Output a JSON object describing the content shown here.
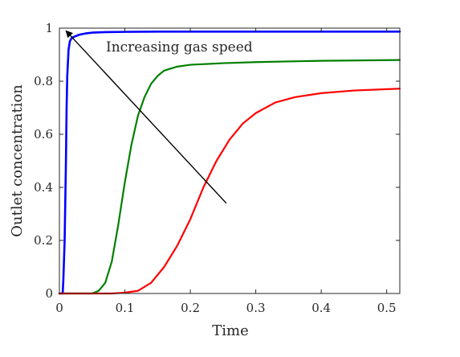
{
  "chart_data": {
    "type": "line",
    "xlabel": "Time",
    "ylabel": "Outlet concentration",
    "xlim": [
      0,
      0.52
    ],
    "ylim": [
      0,
      1
    ],
    "xticks": [
      0,
      0.1,
      0.2,
      0.3,
      0.4,
      0.5
    ],
    "xtick_labels": [
      "0",
      "0.1",
      "0.2",
      "0.3",
      "0.4",
      "0.5"
    ],
    "yticks": [
      0,
      0.2,
      0.4,
      0.6,
      0.8,
      1
    ],
    "ytick_labels": [
      "0",
      "0.2",
      "0.4",
      "0.6",
      "0.8",
      "1"
    ],
    "grid": false,
    "series": [
      {
        "color": "#0000ff",
        "x": [
          0,
          0.005,
          0.006,
          0.008,
          0.01,
          0.011,
          0.012,
          0.014,
          0.016,
          0.018,
          0.02,
          0.025,
          0.03,
          0.04,
          0.05,
          0.07,
          0.1,
          0.15,
          0.2,
          0.3,
          0.4,
          0.52
        ],
        "y": [
          0,
          0,
          0.05,
          0.2,
          0.5,
          0.7,
          0.82,
          0.92,
          0.95,
          0.96,
          0.965,
          0.97,
          0.975,
          0.98,
          0.983,
          0.985,
          0.986,
          0.987,
          0.987,
          0.987,
          0.987,
          0.987
        ]
      },
      {
        "color": "#008000",
        "x": [
          0,
          0.05,
          0.06,
          0.07,
          0.08,
          0.09,
          0.1,
          0.11,
          0.12,
          0.13,
          0.14,
          0.15,
          0.16,
          0.18,
          0.2,
          0.25,
          0.3,
          0.4,
          0.52
        ],
        "y": [
          0,
          0,
          0.01,
          0.04,
          0.12,
          0.26,
          0.42,
          0.56,
          0.67,
          0.74,
          0.79,
          0.82,
          0.84,
          0.855,
          0.862,
          0.868,
          0.872,
          0.877,
          0.88
        ]
      },
      {
        "color": "#ff0000",
        "x": [
          0,
          0.08,
          0.1,
          0.12,
          0.14,
          0.16,
          0.18,
          0.2,
          0.22,
          0.24,
          0.26,
          0.28,
          0.3,
          0.33,
          0.36,
          0.4,
          0.45,
          0.52
        ],
        "y": [
          0,
          0,
          0.003,
          0.01,
          0.04,
          0.1,
          0.18,
          0.28,
          0.4,
          0.5,
          0.58,
          0.64,
          0.68,
          0.72,
          0.74,
          0.755,
          0.765,
          0.772
        ]
      }
    ],
    "annotation": {
      "text": "Increasing gas speed",
      "arrow_from": [
        0.255,
        0.34
      ],
      "arrow_to": [
        0.01,
        0.99
      ]
    }
  }
}
